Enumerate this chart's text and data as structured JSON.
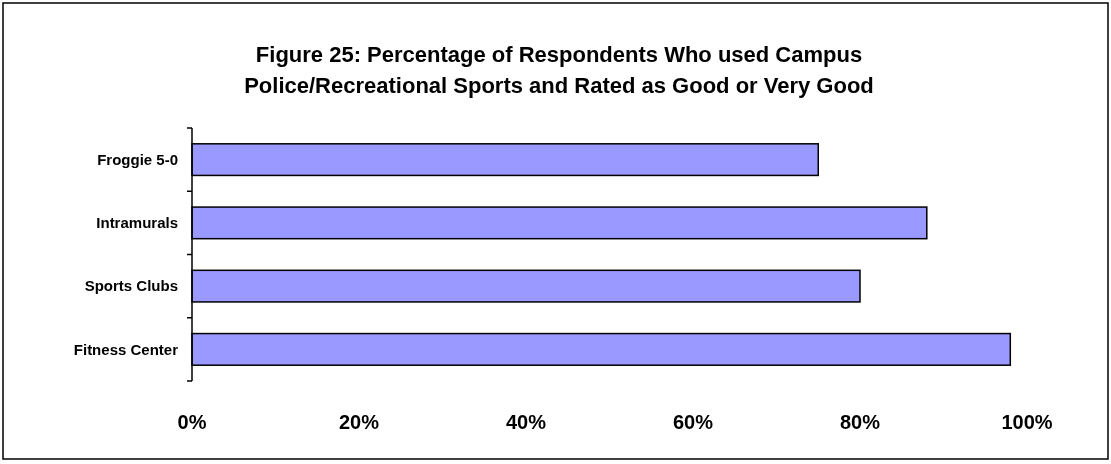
{
  "chart_data": {
    "type": "bar",
    "orientation": "horizontal",
    "title": "Figure 25: Percentage of Respondents Who used Campus\nPolice/Recreational Sports and Rated as Good or Very Good",
    "categories": [
      "Froggie 5-0",
      "Intramurals",
      "Sports Clubs",
      "Fitness Center"
    ],
    "values": [
      75,
      88,
      80,
      98
    ],
    "color": "#9999ff",
    "xlim": [
      0,
      100
    ],
    "xticks": [
      {
        "value": 0,
        "label": "0%"
      },
      {
        "value": 20,
        "label": "20%"
      },
      {
        "value": 40,
        "label": "40%"
      },
      {
        "value": 60,
        "label": "60%"
      },
      {
        "value": 80,
        "label": "80%"
      },
      {
        "value": 100,
        "label": "100%"
      }
    ],
    "grid": false
  }
}
